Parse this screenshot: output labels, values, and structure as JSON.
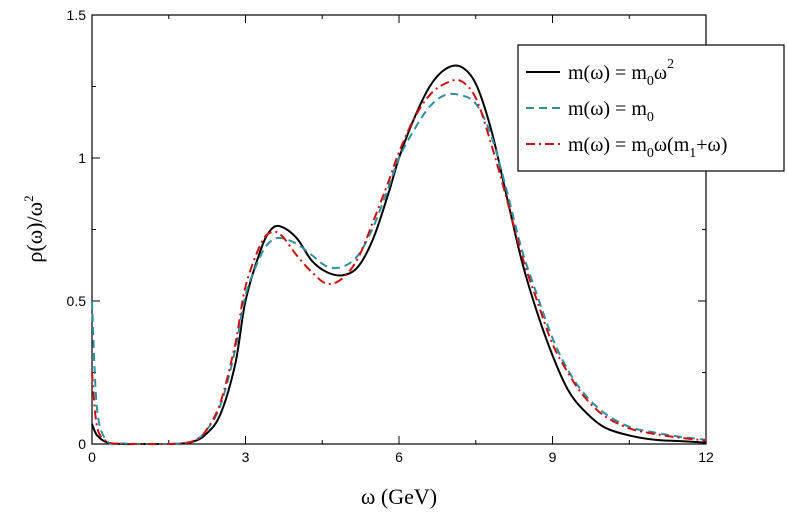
{
  "chart_data": {
    "type": "line",
    "title": "",
    "xlabel": "ω (GeV)",
    "ylabel": "ρ(ω)/ω²",
    "xlim": [
      0,
      12
    ],
    "ylim": [
      0,
      1.5
    ],
    "xticks": [
      0,
      3,
      6,
      9,
      12
    ],
    "xtick_labels": [
      "0",
      "3",
      "6",
      "9",
      "12"
    ],
    "yticks": [
      0,
      0.5,
      1,
      1.5
    ],
    "ytick_labels": [
      "0",
      "0.5",
      "1",
      "1.5"
    ],
    "grid": false,
    "legend_position": "top-right",
    "x": [
      0,
      0.1,
      0.3,
      0.6,
      1,
      1.5,
      1.8,
      2,
      2.2,
      2.5,
      2.8,
      3,
      3.3,
      3.5,
      3.7,
      4,
      4.3,
      4.6,
      4.9,
      5.2,
      5.5,
      5.8,
      6,
      6.3,
      6.6,
      6.9,
      7.2,
      7.5,
      7.8,
      8.1,
      8.4,
      8.7,
      9,
      9.3,
      9.6,
      10,
      10.5,
      11,
      11.5,
      12
    ],
    "series": [
      {
        "name": "m(ω) = m₀ω²",
        "label_parts": {
          "a": "m(ω) = m",
          "sub1": "0",
          "b": "ω",
          "sup1": "2"
        },
        "color": "#000000",
        "dash": "solid",
        "values": [
          0.07,
          0.03,
          0.005,
          0,
          0,
          0,
          0.002,
          0.01,
          0.03,
          0.1,
          0.28,
          0.5,
          0.68,
          0.75,
          0.76,
          0.72,
          0.64,
          0.6,
          0.59,
          0.62,
          0.72,
          0.88,
          1.0,
          1.14,
          1.25,
          1.31,
          1.32,
          1.26,
          1.1,
          0.87,
          0.64,
          0.46,
          0.31,
          0.19,
          0.12,
          0.06,
          0.03,
          0.015,
          0.01,
          0.005
        ]
      },
      {
        "name": "m(ω) = m₀",
        "label_parts": {
          "a": "m(ω) = m",
          "sub1": "0"
        },
        "color": "#2f8fa0",
        "dash": "dashed",
        "values": [
          0.5,
          0.12,
          0.01,
          0.002,
          0,
          0,
          0.003,
          0.012,
          0.04,
          0.13,
          0.33,
          0.52,
          0.66,
          0.71,
          0.72,
          0.7,
          0.66,
          0.62,
          0.62,
          0.66,
          0.76,
          0.9,
          1.0,
          1.1,
          1.18,
          1.22,
          1.22,
          1.19,
          1.08,
          0.89,
          0.68,
          0.52,
          0.37,
          0.26,
          0.18,
          0.11,
          0.06,
          0.04,
          0.025,
          0.015
        ]
      },
      {
        "name": "m(ω) = m₀ω(m₁+ω)",
        "label_parts": {
          "a": "m(ω) = m",
          "sub1": "0",
          "b": "ω(m",
          "sub2": "1",
          "c": "+ω)"
        },
        "color": "#cc1111",
        "dash": "dashdot",
        "values": [
          0.25,
          0.06,
          0.008,
          0.001,
          0,
          0,
          0.003,
          0.012,
          0.04,
          0.14,
          0.35,
          0.55,
          0.7,
          0.74,
          0.73,
          0.66,
          0.6,
          0.56,
          0.58,
          0.65,
          0.78,
          0.92,
          1.02,
          1.14,
          1.22,
          1.26,
          1.27,
          1.21,
          1.05,
          0.86,
          0.66,
          0.5,
          0.35,
          0.25,
          0.17,
          0.1,
          0.055,
          0.035,
          0.022,
          0.012
        ]
      }
    ]
  }
}
